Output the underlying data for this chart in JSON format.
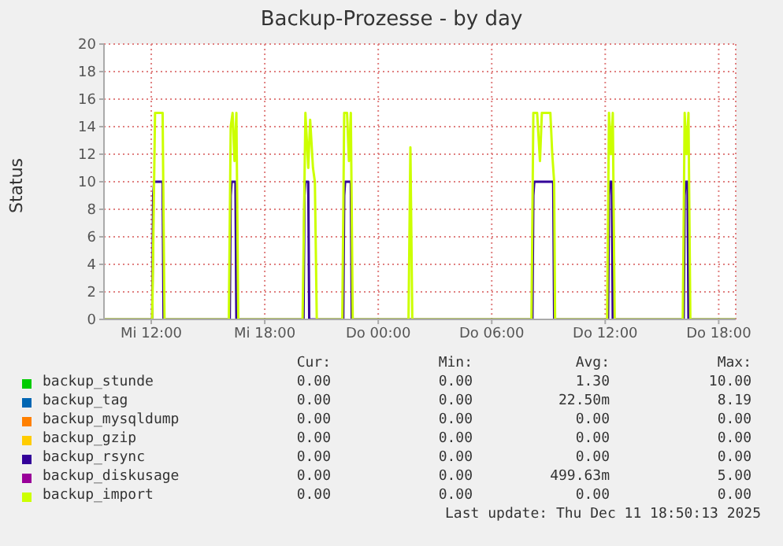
{
  "chart_data": {
    "type": "line",
    "title": "Backup-Prozesse - by day",
    "ylabel": "Status",
    "xlim": [
      "2025-12-10T09:30",
      "2025-12-11T18:54"
    ],
    "xticks": [
      {
        "value": "2025-12-10T12:00",
        "label": "Mi 12:00"
      },
      {
        "value": "2025-12-10T18:00",
        "label": "Mi 18:00"
      },
      {
        "value": "2025-12-11T00:00",
        "label": "Do 00:00"
      },
      {
        "value": "2025-12-11T06:00",
        "label": "Do 06:00"
      },
      {
        "value": "2025-12-11T12:00",
        "label": "Do 12:00"
      },
      {
        "value": "2025-12-11T18:00",
        "label": "Do 18:00"
      }
    ],
    "ylim": [
      0,
      20
    ],
    "yticks": [
      0,
      2,
      4,
      6,
      8,
      10,
      12,
      14,
      16,
      18,
      20
    ],
    "grid": true,
    "legend": "bottom",
    "marker": "none",
    "line_style": "solid",
    "series": [
      {
        "name": "backup_stunde",
        "color": "#00cc00"
      },
      {
        "name": "backup_tag",
        "color": "#0066b3"
      },
      {
        "name": "backup_mysqldump",
        "color": "#ff8000"
      },
      {
        "name": "backup_gzip",
        "color": "#ffcc00"
      },
      {
        "name": "backup_rsync",
        "color": "#330099",
        "x": [
          "2025-12-10T09:30",
          "2025-12-10T12:03",
          "2025-12-10T12:06",
          "2025-12-10T12:09",
          "2025-12-10T12:36",
          "2025-12-10T12:39",
          "2025-12-10T16:09",
          "2025-12-10T16:12",
          "2025-12-10T16:15",
          "2025-12-10T16:27",
          "2025-12-10T16:30",
          "2025-12-10T20:03",
          "2025-12-10T20:06",
          "2025-12-10T20:09",
          "2025-12-10T20:18",
          "2025-12-10T20:21",
          "2025-12-10T22:09",
          "2025-12-10T22:12",
          "2025-12-10T22:15",
          "2025-12-10T22:33",
          "2025-12-10T22:36",
          "2025-12-11T08:09",
          "2025-12-11T08:12",
          "2025-12-11T08:15",
          "2025-12-11T09:15",
          "2025-12-11T09:18",
          "2025-12-11T12:09",
          "2025-12-11T12:12",
          "2025-12-11T12:15",
          "2025-12-11T12:21",
          "2025-12-11T12:24",
          "2025-12-11T16:09",
          "2025-12-11T16:12",
          "2025-12-11T16:15",
          "2025-12-11T16:21",
          "2025-12-11T16:24",
          "2025-12-11T18:54"
        ],
        "values": [
          0,
          0,
          9,
          10,
          10,
          0,
          0,
          9,
          10,
          10,
          0,
          0,
          9,
          10,
          10,
          0,
          0,
          9,
          10,
          10,
          0,
          0,
          9,
          10,
          10,
          0,
          0,
          9,
          10,
          10,
          0,
          0,
          9,
          10,
          10,
          0,
          0
        ]
      },
      {
        "name": "backup_diskusage",
        "color": "#990099"
      },
      {
        "name": "backup_import",
        "color": "#ccff00",
        "x": [
          "2025-12-10T09:30",
          "2025-12-10T12:03",
          "2025-12-10T12:12",
          "2025-12-10T12:36",
          "2025-12-10T12:42",
          "2025-12-10T16:06",
          "2025-12-10T16:12",
          "2025-12-10T16:18",
          "2025-12-10T16:24",
          "2025-12-10T16:30",
          "2025-12-10T16:36",
          "2025-12-10T20:00",
          "2025-12-10T20:09",
          "2025-12-10T20:18",
          "2025-12-10T20:24",
          "2025-12-10T20:33",
          "2025-12-10T20:39",
          "2025-12-10T20:45",
          "2025-12-10T22:06",
          "2025-12-10T22:12",
          "2025-12-10T22:21",
          "2025-12-10T22:27",
          "2025-12-10T22:33",
          "2025-12-10T22:39",
          "2025-12-11T01:36",
          "2025-12-11T01:42",
          "2025-12-11T01:48",
          "2025-12-11T08:06",
          "2025-12-11T08:12",
          "2025-12-11T08:24",
          "2025-12-11T08:33",
          "2025-12-11T08:39",
          "2025-12-11T09:06",
          "2025-12-11T09:12",
          "2025-12-11T09:18",
          "2025-12-11T09:21",
          "2025-12-11T12:06",
          "2025-12-11T12:12",
          "2025-12-11T12:18",
          "2025-12-11T12:24",
          "2025-12-11T12:30",
          "2025-12-11T16:06",
          "2025-12-11T16:12",
          "2025-12-11T16:18",
          "2025-12-11T16:24",
          "2025-12-11T16:30",
          "2025-12-11T18:54"
        ],
        "values": [
          0,
          0,
          15,
          15,
          0,
          0,
          14,
          15,
          11.5,
          15,
          0,
          0,
          15,
          11,
          14.5,
          11,
          10,
          0,
          0,
          15,
          15,
          11.5,
          15,
          0,
          0,
          12.5,
          0,
          0,
          15,
          15,
          11.5,
          15,
          15,
          12,
          10,
          0,
          0,
          15,
          12,
          15,
          0,
          0,
          15,
          12,
          15,
          0,
          0
        ]
      }
    ],
    "annotations": [
      "Cur:",
      "Min:",
      "Avg:",
      "Max:",
      "0.00",
      "0.00",
      "1.30",
      "10.00",
      "0.00",
      "0.00",
      "22.50m",
      "8.19",
      "0.00",
      "0.00",
      "0.00",
      "0.00",
      "0.00",
      "0.00",
      "0.00",
      "0.00",
      "0.00",
      "0.00",
      "0.00",
      "0.00",
      "0.00",
      "0.00",
      "499.63m",
      "5.00",
      "0.00",
      "0.00",
      "0.00",
      "0.00",
      "Last update: Thu Dec 11 18:50:13 2025"
    ]
  }
}
